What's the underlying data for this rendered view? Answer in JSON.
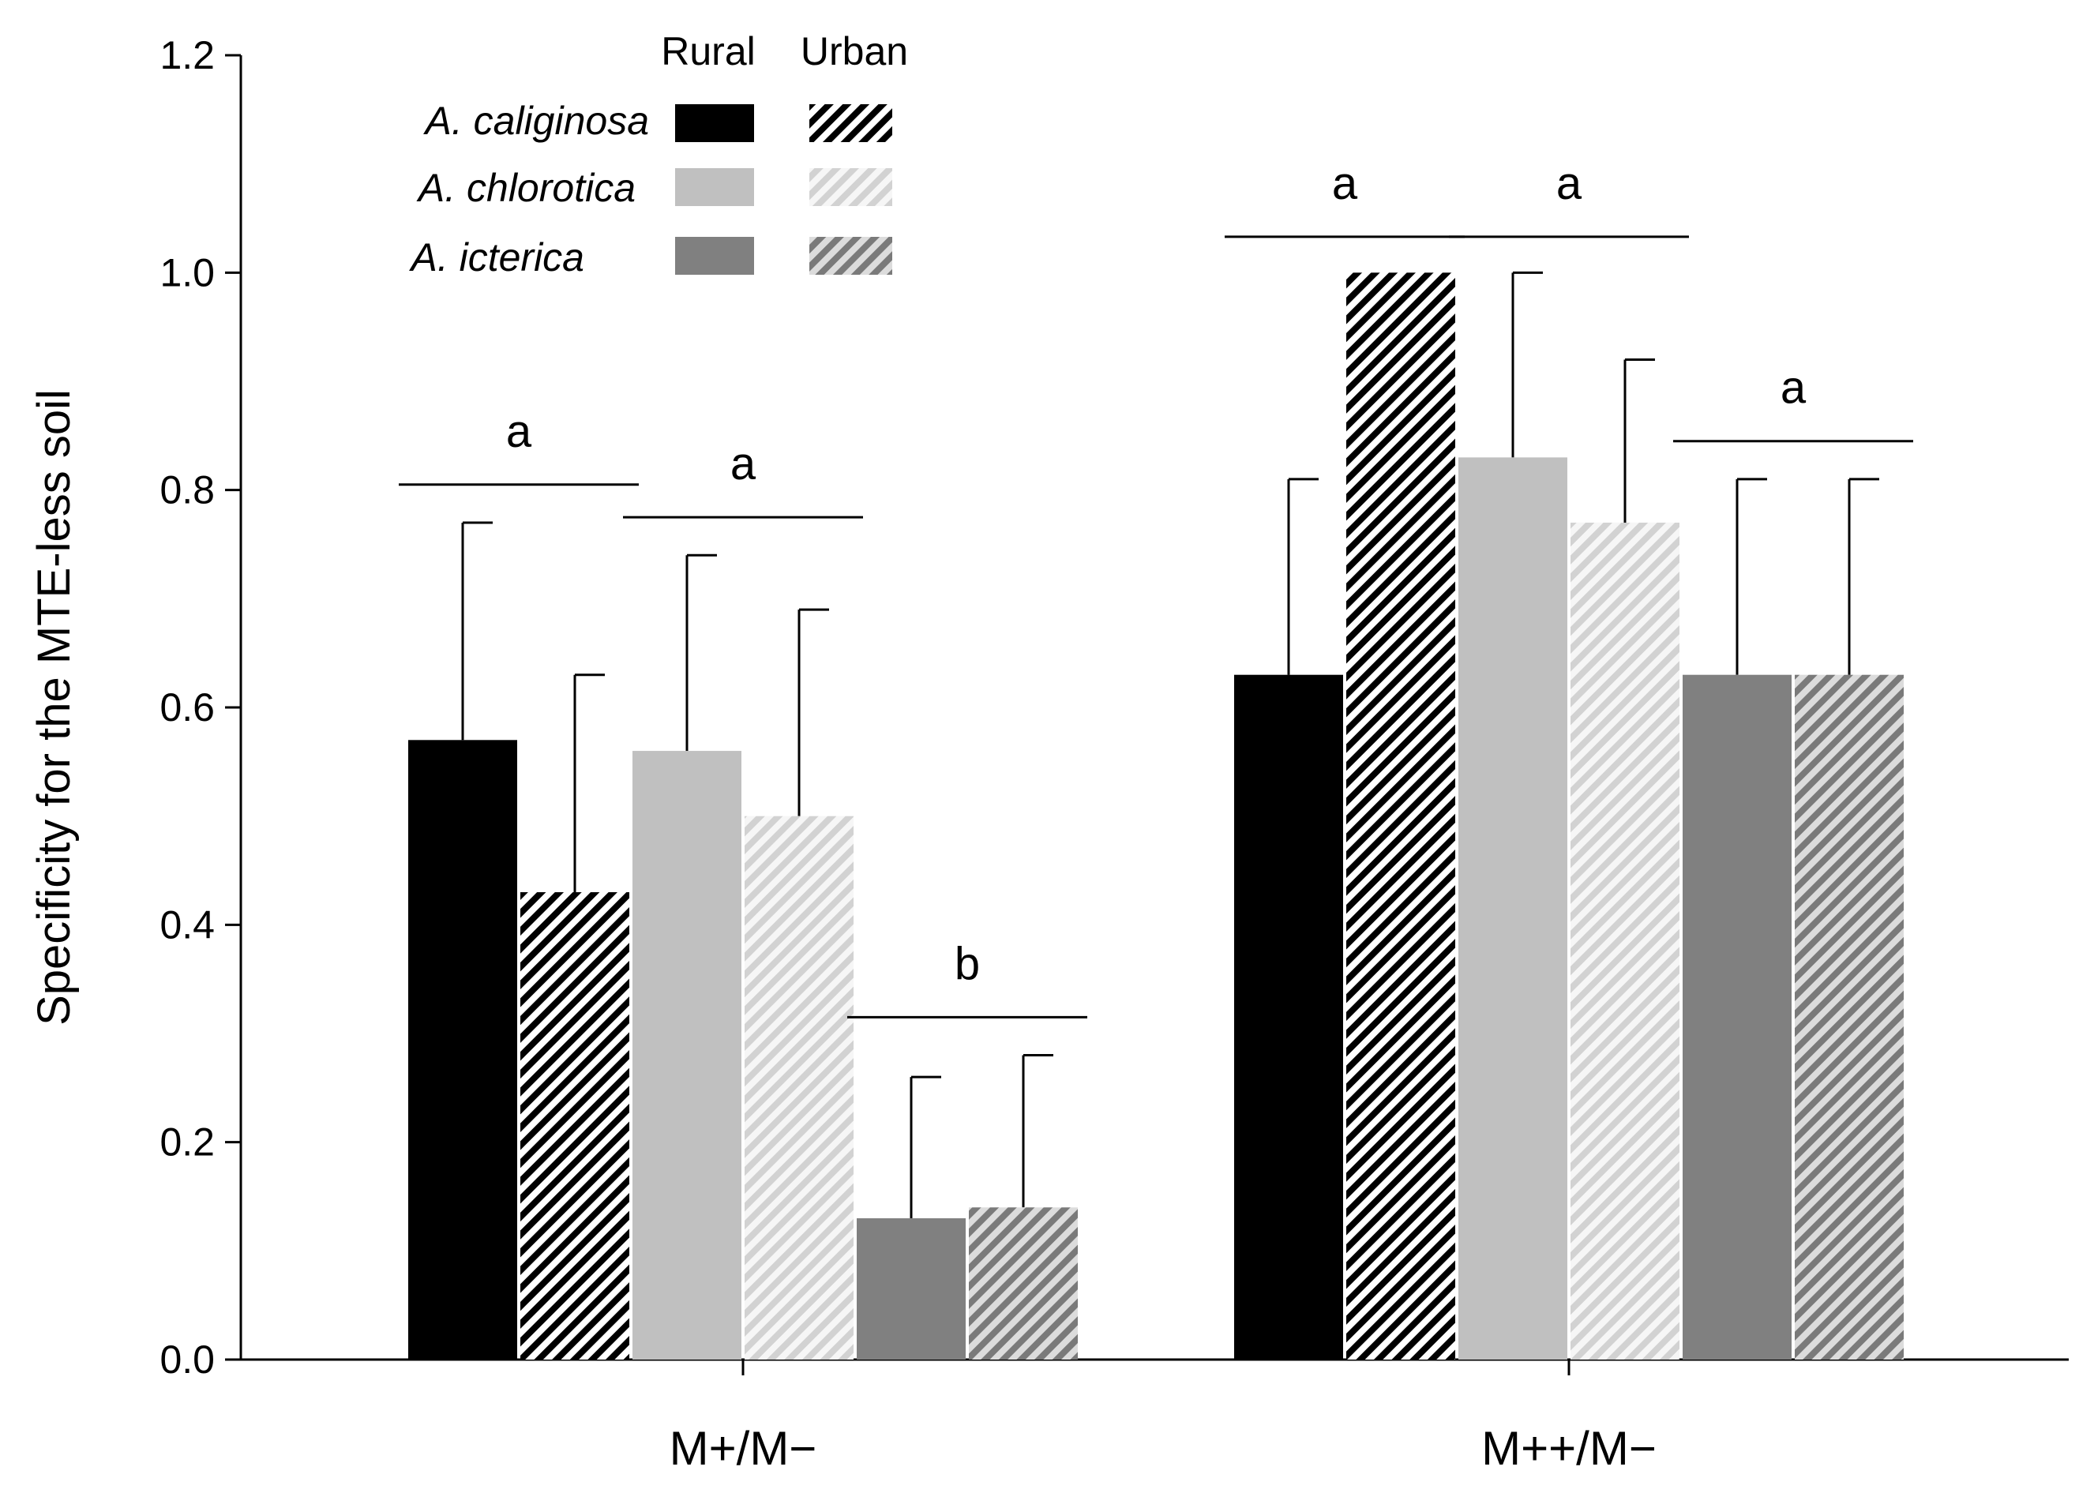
{
  "chart_data": {
    "type": "bar",
    "ylabel": "Specificity for the MTE-less soil",
    "xlabel": "",
    "ylim": [
      0,
      1.2
    ],
    "yticks": [
      "0.0",
      "0.2",
      "0.4",
      "0.6",
      "0.8",
      "1.0",
      "1.2"
    ],
    "categories": [
      "M+/M−",
      "M++/M−"
    ],
    "series": [
      {
        "name": "A. caliginosa Rural",
        "species": "A. caliginosa",
        "habitat": "Rural",
        "color": "#000000",
        "hatched": false,
        "values": [
          0.57,
          0.63
        ],
        "errors": [
          0.2,
          0.18
        ]
      },
      {
        "name": "A. caliginosa Urban",
        "species": "A. caliginosa",
        "habitat": "Urban",
        "color": "#000000",
        "hatched": true,
        "values": [
          0.43,
          1.0
        ],
        "errors": [
          0.2,
          0
        ]
      },
      {
        "name": "A. chlorotica Rural",
        "species": "A. chlorotica",
        "habitat": "Rural",
        "color": "#c0c0c0",
        "hatched": false,
        "values": [
          0.56,
          0.83
        ],
        "errors": [
          0.18,
          0.17
        ]
      },
      {
        "name": "A. chlorotica Urban",
        "species": "A. chlorotica",
        "habitat": "Urban",
        "color": "#dcdcdc",
        "hatched": true,
        "values": [
          0.5,
          0.77
        ],
        "errors": [
          0.19,
          0.15
        ]
      },
      {
        "name": "A. icterica Rural",
        "species": "A. icterica",
        "habitat": "Rural",
        "color": "#808080",
        "hatched": false,
        "values": [
          0.13,
          0.63
        ],
        "errors": [
          0.13,
          0.18
        ]
      },
      {
        "name": "A. icterica Urban",
        "species": "A. icterica",
        "habitat": "Urban",
        "color": "#808080",
        "hatched": true,
        "values": [
          0.14,
          0.63
        ],
        "errors": [
          0.14,
          0.18
        ]
      }
    ],
    "significance": [
      {
        "category": 0,
        "pair": 0,
        "letter": "a",
        "level": 0.805
      },
      {
        "category": 0,
        "pair": 1,
        "letter": "a",
        "level": 0.775
      },
      {
        "category": 0,
        "pair": 2,
        "letter": "b",
        "level": 0.315
      },
      {
        "category": 1,
        "pair": 0,
        "letter": "a",
        "level": 1.033
      },
      {
        "category": 1,
        "pair": 1,
        "letter": "a",
        "level": 1.033
      },
      {
        "category": 1,
        "pair": 2,
        "letter": "a",
        "level": 0.845
      }
    ],
    "legend": {
      "placement": "top-left",
      "headers": [
        "Rural",
        "Urban"
      ],
      "species": [
        "A. caliginosa",
        "A. chlorotica",
        "A. icterica"
      ]
    }
  }
}
